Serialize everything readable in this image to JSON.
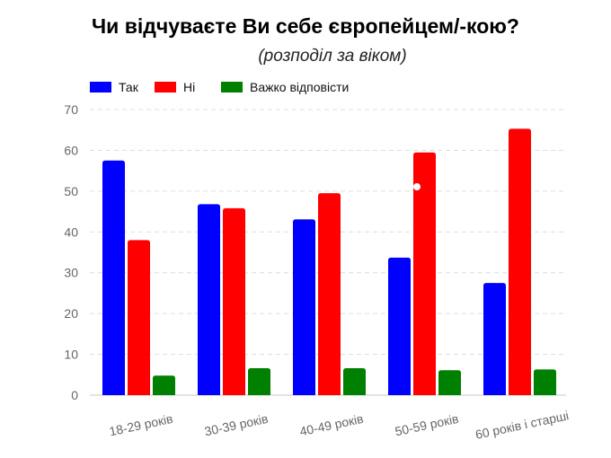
{
  "chart_data": {
    "type": "bar",
    "title": "Чи відчуваєте Ви себе європейцем/-кою?",
    "subtitle": "(розподіл за віком)",
    "xlabel": "",
    "ylabel": "",
    "categories": [
      "18-29 років",
      "30-39 років",
      "40-49 років",
      "50-59 років",
      "60 років і старші"
    ],
    "series": [
      {
        "name": "Так",
        "color": "#0000ff",
        "values": [
          57.5,
          46.8,
          43.1,
          33.7,
          27.5
        ]
      },
      {
        "name": "Ні",
        "color": "#ff0000",
        "values": [
          38.0,
          45.8,
          49.5,
          59.5,
          65.3
        ]
      },
      {
        "name": "Важко відповісти",
        "color": "#008000",
        "values": [
          4.8,
          6.6,
          6.6,
          6.1,
          6.3
        ]
      }
    ],
    "ylim": [
      0,
      70
    ],
    "yticks": [
      0,
      10,
      20,
      30,
      40,
      50,
      60,
      70
    ],
    "grid": true,
    "legend_position": "top-left"
  }
}
